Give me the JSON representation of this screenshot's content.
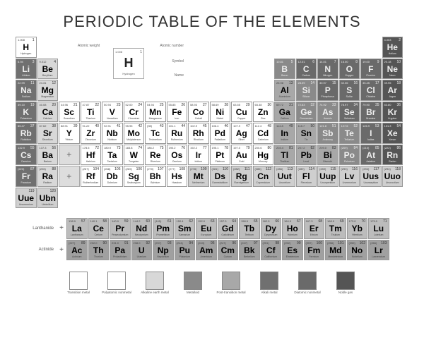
{
  "title": "PERIODIC TABLE OF THE ELEMENTS",
  "legend": {
    "weight": "1.008",
    "number": "1",
    "symbol": "H",
    "name": "Hydrogen",
    "lbl_weight": "Atomic weight",
    "lbl_number": "Atomic number",
    "lbl_symbol": "Symbol",
    "lbl_name": "Name"
  },
  "colors": {
    "nonmetal": "#ffffff",
    "metalloid": "#8a8a8a",
    "alkali": "#707070",
    "alkaline": "#d8d8d8",
    "transition": "#ffffff",
    "post": "#a8a8a8",
    "halogen": "#c4c4c4",
    "noble": "#555555",
    "lanth": "#bcbcbc",
    "act": "#a0a0a0",
    "unknown": "#cfcfcf"
  },
  "elements": [
    {
      "n": 1,
      "s": "H",
      "m": "Hydrogen",
      "w": "1.008",
      "c": "nonmetal",
      "r": 1,
      "col": 1
    },
    {
      "n": 2,
      "s": "He",
      "m": "Helium",
      "w": "4.003",
      "c": "noble",
      "r": 1,
      "col": 18,
      "d": 1
    },
    {
      "n": 3,
      "s": "Li",
      "m": "Lithium",
      "w": "6.94",
      "c": "alkali",
      "r": 2,
      "col": 1,
      "d": 1
    },
    {
      "n": 4,
      "s": "Be",
      "m": "Beryllium",
      "w": "9.012",
      "c": "alkaline",
      "r": 2,
      "col": 2
    },
    {
      "n": 5,
      "s": "B",
      "m": "Boron",
      "w": "10.81",
      "c": "metalloid",
      "r": 2,
      "col": 13,
      "d": 1
    },
    {
      "n": 6,
      "s": "C",
      "m": "Carbon",
      "w": "12.01",
      "c": "nonmetal",
      "r": 2,
      "col": 14,
      "d": 1,
      "cbg": "#6a6a6a"
    },
    {
      "n": 7,
      "s": "N",
      "m": "Nitrogen",
      "w": "14.01",
      "c": "nonmetal",
      "r": 2,
      "col": 15,
      "d": 1,
      "cbg": "#6a6a6a"
    },
    {
      "n": 8,
      "s": "O",
      "m": "Oxygen",
      "w": "16.00",
      "c": "nonmetal",
      "r": 2,
      "col": 16,
      "d": 1,
      "cbg": "#6a6a6a"
    },
    {
      "n": 9,
      "s": "F",
      "m": "Fluorine",
      "w": "19.00",
      "c": "halogen",
      "r": 2,
      "col": 17,
      "d": 1,
      "cbg": "#6a6a6a"
    },
    {
      "n": 10,
      "s": "Ne",
      "m": "Neon",
      "w": "20.18",
      "c": "noble",
      "r": 2,
      "col": 18,
      "d": 1
    },
    {
      "n": 11,
      "s": "Na",
      "m": "Sodium",
      "w": "22.99",
      "c": "alkali",
      "r": 3,
      "col": 1,
      "d": 1
    },
    {
      "n": 12,
      "s": "Mg",
      "m": "Magnesium",
      "w": "24.31",
      "c": "alkaline",
      "r": 3,
      "col": 2
    },
    {
      "n": 13,
      "s": "Al",
      "m": "Aluminium",
      "w": "26.98",
      "c": "post",
      "r": 3,
      "col": 13
    },
    {
      "n": 14,
      "s": "Si",
      "m": "Silicon",
      "w": "28.09",
      "c": "metalloid",
      "r": 3,
      "col": 14,
      "d": 1
    },
    {
      "n": 15,
      "s": "P",
      "m": "Phosphorus",
      "w": "30.97",
      "c": "nonmetal",
      "r": 3,
      "col": 15,
      "d": 1,
      "cbg": "#6a6a6a"
    },
    {
      "n": 16,
      "s": "S",
      "m": "Sulfur",
      "w": "32.06",
      "c": "nonmetal",
      "r": 3,
      "col": 16,
      "d": 1,
      "cbg": "#6a6a6a"
    },
    {
      "n": 17,
      "s": "Cl",
      "m": "Chlorine",
      "w": "35.45",
      "c": "halogen",
      "r": 3,
      "col": 17,
      "d": 1,
      "cbg": "#6a6a6a"
    },
    {
      "n": 18,
      "s": "Ar",
      "m": "Argon",
      "w": "39.95",
      "c": "noble",
      "r": 3,
      "col": 18,
      "d": 1
    },
    {
      "n": 19,
      "s": "K",
      "m": "Potassium",
      "w": "39.10",
      "c": "alkali",
      "r": 4,
      "col": 1,
      "d": 1
    },
    {
      "n": 20,
      "s": "Ca",
      "m": "Calcium",
      "w": "40.08",
      "c": "alkaline",
      "r": 4,
      "col": 2
    },
    {
      "n": 21,
      "s": "Sc",
      "m": "Scandium",
      "w": "44.96",
      "c": "transition",
      "r": 4,
      "col": 3
    },
    {
      "n": 22,
      "s": "Ti",
      "m": "Titanium",
      "w": "47.87",
      "c": "transition",
      "r": 4,
      "col": 4
    },
    {
      "n": 23,
      "s": "V",
      "m": "Vanadium",
      "w": "50.94",
      "c": "transition",
      "r": 4,
      "col": 5
    },
    {
      "n": 24,
      "s": "Cr",
      "m": "Chromium",
      "w": "52.00",
      "c": "transition",
      "r": 4,
      "col": 6
    },
    {
      "n": 25,
      "s": "Mn",
      "m": "Manganese",
      "w": "54.94",
      "c": "transition",
      "r": 4,
      "col": 7
    },
    {
      "n": 26,
      "s": "Fe",
      "m": "Iron",
      "w": "55.85",
      "c": "transition",
      "r": 4,
      "col": 8
    },
    {
      "n": 27,
      "s": "Co",
      "m": "Cobalt",
      "w": "58.93",
      "c": "transition",
      "r": 4,
      "col": 9
    },
    {
      "n": 28,
      "s": "Ni",
      "m": "Nickel",
      "w": "58.69",
      "c": "transition",
      "r": 4,
      "col": 10
    },
    {
      "n": 29,
      "s": "Cu",
      "m": "Copper",
      "w": "63.55",
      "c": "transition",
      "r": 4,
      "col": 11
    },
    {
      "n": 30,
      "s": "Zn",
      "m": "Zinc",
      "w": "65.38",
      "c": "transition",
      "r": 4,
      "col": 12
    },
    {
      "n": 31,
      "s": "Ga",
      "m": "Gallium",
      "w": "69.72",
      "c": "post",
      "r": 4,
      "col": 13
    },
    {
      "n": 32,
      "s": "Ge",
      "m": "Germanium",
      "w": "72.63",
      "c": "metalloid",
      "r": 4,
      "col": 14,
      "d": 1
    },
    {
      "n": 33,
      "s": "As",
      "m": "Arsenic",
      "w": "74.92",
      "c": "metalloid",
      "r": 4,
      "col": 15,
      "d": 1
    },
    {
      "n": 34,
      "s": "Se",
      "m": "Selenium",
      "w": "78.97",
      "c": "nonmetal",
      "r": 4,
      "col": 16,
      "d": 1,
      "cbg": "#6a6a6a"
    },
    {
      "n": 35,
      "s": "Br",
      "m": "Bromine",
      "w": "79.90",
      "c": "halogen",
      "r": 4,
      "col": 17,
      "d": 1,
      "cbg": "#6a6a6a"
    },
    {
      "n": 36,
      "s": "Kr",
      "m": "Krypton",
      "w": "83.80",
      "c": "noble",
      "r": 4,
      "col": 18,
      "d": 1
    },
    {
      "n": 37,
      "s": "Rb",
      "m": "Rubidium",
      "w": "85.47",
      "c": "alkali",
      "r": 5,
      "col": 1,
      "d": 1
    },
    {
      "n": 38,
      "s": "Sr",
      "m": "Strontium",
      "w": "87.62",
      "c": "alkaline",
      "r": 5,
      "col": 2
    },
    {
      "n": 39,
      "s": "Y",
      "m": "Yttrium",
      "w": "88.91",
      "c": "transition",
      "r": 5,
      "col": 3
    },
    {
      "n": 40,
      "s": "Zr",
      "m": "Zirconium",
      "w": "91.22",
      "c": "transition",
      "r": 5,
      "col": 4
    },
    {
      "n": 41,
      "s": "Nb",
      "m": "Niobium",
      "w": "92.91",
      "c": "transition",
      "r": 5,
      "col": 5
    },
    {
      "n": 42,
      "s": "Mo",
      "m": "Molybdenum",
      "w": "95.95",
      "c": "transition",
      "r": 5,
      "col": 6
    },
    {
      "n": 43,
      "s": "Tc",
      "m": "Technetium",
      "w": "(98)",
      "c": "transition",
      "r": 5,
      "col": 7
    },
    {
      "n": 44,
      "s": "Ru",
      "m": "Ruthenium",
      "w": "101.1",
      "c": "transition",
      "r": 5,
      "col": 8
    },
    {
      "n": 45,
      "s": "Rh",
      "m": "Rhodium",
      "w": "102.9",
      "c": "transition",
      "r": 5,
      "col": 9
    },
    {
      "n": 46,
      "s": "Pd",
      "m": "Palladium",
      "w": "106.4",
      "c": "transition",
      "r": 5,
      "col": 10
    },
    {
      "n": 47,
      "s": "Ag",
      "m": "Silver",
      "w": "107.9",
      "c": "transition",
      "r": 5,
      "col": 11
    },
    {
      "n": 48,
      "s": "Cd",
      "m": "Cadmium",
      "w": "112.4",
      "c": "transition",
      "r": 5,
      "col": 12
    },
    {
      "n": 49,
      "s": "In",
      "m": "Indium",
      "w": "114.8",
      "c": "post",
      "r": 5,
      "col": 13
    },
    {
      "n": 50,
      "s": "Sn",
      "m": "Tin",
      "w": "118.7",
      "c": "post",
      "r": 5,
      "col": 14
    },
    {
      "n": 51,
      "s": "Sb",
      "m": "Antimony",
      "w": "121.8",
      "c": "metalloid",
      "r": 5,
      "col": 15,
      "d": 1
    },
    {
      "n": 52,
      "s": "Te",
      "m": "Tellurium",
      "w": "127.6",
      "c": "metalloid",
      "r": 5,
      "col": 16,
      "d": 1
    },
    {
      "n": 53,
      "s": "I",
      "m": "Iodine",
      "w": "126.9",
      "c": "halogen",
      "r": 5,
      "col": 17,
      "d": 1,
      "cbg": "#6a6a6a"
    },
    {
      "n": 54,
      "s": "Xe",
      "m": "Xenon",
      "w": "131.3",
      "c": "noble",
      "r": 5,
      "col": 18,
      "d": 1
    },
    {
      "n": 55,
      "s": "Cs",
      "m": "Caesium",
      "w": "132.9",
      "c": "alkali",
      "r": 6,
      "col": 1,
      "d": 1
    },
    {
      "n": 56,
      "s": "Ba",
      "m": "Barium",
      "w": "137.3",
      "c": "alkaline",
      "r": 6,
      "col": 2
    },
    {
      "n": 72,
      "s": "Hf",
      "m": "Hafnium",
      "w": "178.5",
      "c": "transition",
      "r": 6,
      "col": 4
    },
    {
      "n": 73,
      "s": "Ta",
      "m": "Tantalum",
      "w": "180.9",
      "c": "transition",
      "r": 6,
      "col": 5
    },
    {
      "n": 74,
      "s": "W",
      "m": "Tungsten",
      "w": "183.8",
      "c": "transition",
      "r": 6,
      "col": 6
    },
    {
      "n": 75,
      "s": "Re",
      "m": "Rhenium",
      "w": "186.2",
      "c": "transition",
      "r": 6,
      "col": 7
    },
    {
      "n": 76,
      "s": "Os",
      "m": "Osmium",
      "w": "190.2",
      "c": "transition",
      "r": 6,
      "col": 8
    },
    {
      "n": 77,
      "s": "Ir",
      "m": "Iridium",
      "w": "192.2",
      "c": "transition",
      "r": 6,
      "col": 9
    },
    {
      "n": 78,
      "s": "Pt",
      "m": "Platinum",
      "w": "195.1",
      "c": "transition",
      "r": 6,
      "col": 10
    },
    {
      "n": 79,
      "s": "Au",
      "m": "Gold",
      "w": "197.0",
      "c": "transition",
      "r": 6,
      "col": 11
    },
    {
      "n": 80,
      "s": "Hg",
      "m": "Mercury",
      "w": "200.6",
      "c": "transition",
      "r": 6,
      "col": 12
    },
    {
      "n": 81,
      "s": "Tl",
      "m": "Thallium",
      "w": "204.4",
      "c": "post",
      "r": 6,
      "col": 13
    },
    {
      "n": 82,
      "s": "Pb",
      "m": "Lead",
      "w": "207.2",
      "c": "post",
      "r": 6,
      "col": 14
    },
    {
      "n": 83,
      "s": "Bi",
      "m": "Bismuth",
      "w": "209.0",
      "c": "post",
      "r": 6,
      "col": 15
    },
    {
      "n": 84,
      "s": "Po",
      "m": "Polonium",
      "w": "(209)",
      "c": "metalloid",
      "r": 6,
      "col": 16,
      "d": 1
    },
    {
      "n": 85,
      "s": "At",
      "m": "Astatine",
      "w": "(210)",
      "c": "halogen",
      "r": 6,
      "col": 17,
      "d": 1,
      "cbg": "#6a6a6a"
    },
    {
      "n": 86,
      "s": "Rn",
      "m": "Radon",
      "w": "(222)",
      "c": "noble",
      "r": 6,
      "col": 18,
      "d": 1
    },
    {
      "n": 87,
      "s": "Fr",
      "m": "Francium",
      "w": "(223)",
      "c": "alkali",
      "r": 7,
      "col": 1,
      "d": 1
    },
    {
      "n": 88,
      "s": "Ra",
      "m": "Radium",
      "w": "(226)",
      "c": "alkaline",
      "r": 7,
      "col": 2
    },
    {
      "n": 104,
      "s": "Rf",
      "m": "Rutherfordium",
      "w": "(267)",
      "c": "transition",
      "r": 7,
      "col": 4
    },
    {
      "n": 105,
      "s": "Db",
      "m": "Dubnium",
      "w": "(268)",
      "c": "transition",
      "r": 7,
      "col": 5
    },
    {
      "n": 106,
      "s": "Sg",
      "m": "Seaborgium",
      "w": "(269)",
      "c": "transition",
      "r": 7,
      "col": 6
    },
    {
      "n": 107,
      "s": "Bh",
      "m": "Bohrium",
      "w": "(270)",
      "c": "transition",
      "r": 7,
      "col": 7
    },
    {
      "n": 108,
      "s": "Hs",
      "m": "Hassium",
      "w": "(277)",
      "c": "transition",
      "r": 7,
      "col": 8
    },
    {
      "n": 109,
      "s": "Mt",
      "m": "Meitnerium",
      "w": "(278)",
      "c": "unknown",
      "r": 7,
      "col": 9
    },
    {
      "n": 110,
      "s": "Ds",
      "m": "Darmstadtium",
      "w": "(281)",
      "c": "unknown",
      "r": 7,
      "col": 10
    },
    {
      "n": 111,
      "s": "Rg",
      "m": "Roentgenium",
      "w": "(282)",
      "c": "unknown",
      "r": 7,
      "col": 11
    },
    {
      "n": 112,
      "s": "Cn",
      "m": "Copernicium",
      "w": "(285)",
      "c": "unknown",
      "r": 7,
      "col": 12
    },
    {
      "n": 113,
      "s": "Uut",
      "m": "Ununtrium",
      "w": "(286)",
      "c": "unknown",
      "r": 7,
      "col": 13
    },
    {
      "n": 114,
      "s": "Fl",
      "m": "Flerovium",
      "w": "(289)",
      "c": "unknown",
      "r": 7,
      "col": 14
    },
    {
      "n": 115,
      "s": "Uup",
      "m": "Ununpentium",
      "w": "(289)",
      "c": "unknown",
      "r": 7,
      "col": 15
    },
    {
      "n": 116,
      "s": "Lv",
      "m": "Livermorium",
      "w": "(293)",
      "c": "unknown",
      "r": 7,
      "col": 16
    },
    {
      "n": 117,
      "s": "Uus",
      "m": "Ununseptium",
      "w": "(294)",
      "c": "unknown",
      "r": 7,
      "col": 17
    },
    {
      "n": 118,
      "s": "Uuo",
      "m": "Ununoctium",
      "w": "(294)",
      "c": "unknown",
      "r": 7,
      "col": 18
    },
    {
      "n": 119,
      "s": "Uue",
      "m": "Ununennium",
      "w": "",
      "c": "unknown",
      "r": 8,
      "col": 1
    },
    {
      "n": 120,
      "s": "Ubn",
      "m": "Unbinilium",
      "w": "",
      "c": "unknown",
      "r": 8,
      "col": 2
    }
  ],
  "lanth_placeholder_row": 6,
  "act_placeholder_row": 7,
  "lanthanides": [
    {
      "n": 57,
      "s": "La",
      "m": "Lanthanum",
      "w": "138.9"
    },
    {
      "n": 58,
      "s": "Ce",
      "m": "Cerium",
      "w": "140.1"
    },
    {
      "n": 59,
      "s": "Pr",
      "m": "Praseodymium",
      "w": "140.9"
    },
    {
      "n": 60,
      "s": "Nd",
      "m": "Neodymium",
      "w": "144.2"
    },
    {
      "n": 61,
      "s": "Pm",
      "m": "Promethium",
      "w": "(145)"
    },
    {
      "n": 62,
      "s": "Sm",
      "m": "Samarium",
      "w": "150.4"
    },
    {
      "n": 63,
      "s": "Eu",
      "m": "Europium",
      "w": "152.0"
    },
    {
      "n": 64,
      "s": "Gd",
      "m": "Gadolinium",
      "w": "157.3"
    },
    {
      "n": 65,
      "s": "Tb",
      "m": "Terbium",
      "w": "158.9"
    },
    {
      "n": 66,
      "s": "Dy",
      "m": "Dysprosium",
      "w": "162.5"
    },
    {
      "n": 67,
      "s": "Ho",
      "m": "Holmium",
      "w": "164.9"
    },
    {
      "n": 68,
      "s": "Er",
      "m": "Erbium",
      "w": "167.3"
    },
    {
      "n": 69,
      "s": "Tm",
      "m": "Thulium",
      "w": "168.9"
    },
    {
      "n": 70,
      "s": "Yb",
      "m": "Ytterbium",
      "w": "173.0"
    },
    {
      "n": 71,
      "s": "Lu",
      "m": "Lutetium",
      "w": "175.0"
    }
  ],
  "actinides": [
    {
      "n": 89,
      "s": "Ac",
      "m": "Actinium",
      "w": "(227)"
    },
    {
      "n": 90,
      "s": "Th",
      "m": "Thorium",
      "w": "232.0"
    },
    {
      "n": 91,
      "s": "Pa",
      "m": "Protactinium",
      "w": "231.0"
    },
    {
      "n": 92,
      "s": "U",
      "m": "Uranium",
      "w": "238.0"
    },
    {
      "n": 93,
      "s": "Np",
      "m": "Neptunium",
      "w": "(237)"
    },
    {
      "n": 94,
      "s": "Pu",
      "m": "Plutonium",
      "w": "(244)"
    },
    {
      "n": 95,
      "s": "Am",
      "m": "Americium",
      "w": "(243)"
    },
    {
      "n": 96,
      "s": "Cm",
      "m": "Curium",
      "w": "(247)"
    },
    {
      "n": 97,
      "s": "Bk",
      "m": "Berkelium",
      "w": "(247)"
    },
    {
      "n": 98,
      "s": "Cf",
      "m": "Californium",
      "w": "(251)"
    },
    {
      "n": 99,
      "s": "Es",
      "m": "Einsteinium",
      "w": "(252)"
    },
    {
      "n": 100,
      "s": "Fm",
      "m": "Fermium",
      "w": "(257)"
    },
    {
      "n": 101,
      "s": "Md",
      "m": "Mendelevium",
      "w": "(258)"
    },
    {
      "n": 102,
      "s": "No",
      "m": "Nobelium",
      "w": "(259)"
    },
    {
      "n": 103,
      "s": "Lr",
      "m": "Lawrencium",
      "w": "(266)"
    }
  ],
  "series_labels": {
    "lanth": "Lanthanide",
    "act": "Actinide"
  },
  "categories": [
    {
      "k": "transition",
      "t": "Transition metal"
    },
    {
      "k": "nonmetal",
      "t": "Polyatomic nonmetal",
      "bg": "#ffffff"
    },
    {
      "k": "alkaline",
      "t": "Alkaline earth metal"
    },
    {
      "k": "metalloid",
      "t": "Metalloid"
    },
    {
      "k": "post",
      "t": "Post-transition metal"
    },
    {
      "k": "alkali",
      "t": "Alkali metal"
    },
    {
      "k": "halogen",
      "t": "Diatomic nonmetal",
      "bg": "#6a6a6a"
    },
    {
      "k": "noble",
      "t": "Noble gas"
    }
  ]
}
